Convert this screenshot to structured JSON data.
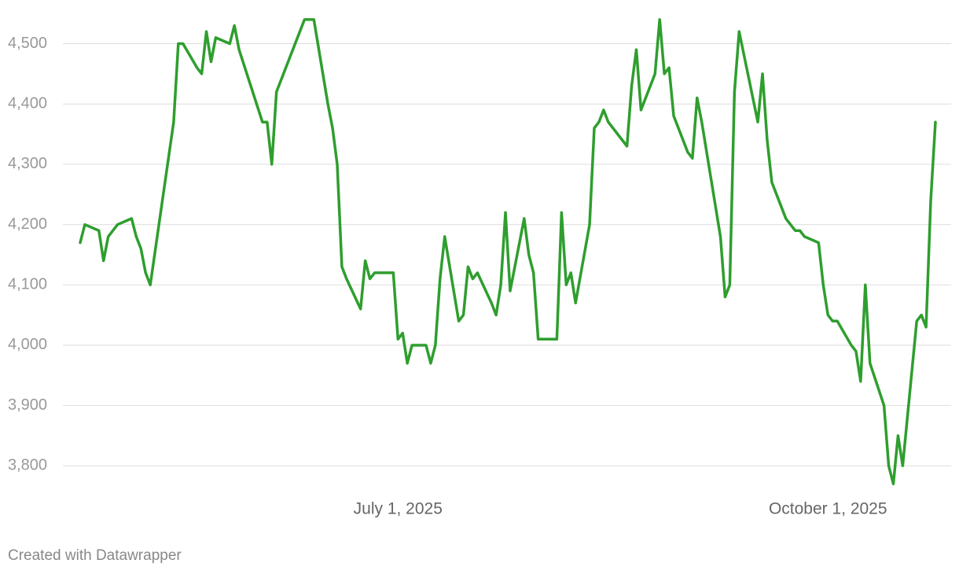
{
  "chart_data": {
    "type": "line",
    "footer": "Created with Datawrapper",
    "x": [
      "2025-04-24",
      "2025-04-25",
      "2025-04-28",
      "2025-04-29",
      "2025-04-30",
      "2025-05-02",
      "2025-05-05",
      "2025-05-06",
      "2025-05-07",
      "2025-05-08",
      "2025-05-09",
      "2025-05-14",
      "2025-05-15",
      "2025-05-16",
      "2025-05-19",
      "2025-05-20",
      "2025-05-21",
      "2025-05-22",
      "2025-05-23",
      "2025-05-26",
      "2025-05-27",
      "2025-05-28",
      "2025-06-02",
      "2025-06-03",
      "2025-06-04",
      "2025-06-05",
      "2025-06-11",
      "2025-06-13",
      "2025-06-16",
      "2025-06-17",
      "2025-06-18",
      "2025-06-19",
      "2025-06-20",
      "2025-06-23",
      "2025-06-24",
      "2025-06-25",
      "2025-06-26",
      "2025-06-30",
      "2025-07-01",
      "2025-07-02",
      "2025-07-03",
      "2025-07-04",
      "2025-07-07",
      "2025-07-08",
      "2025-07-09",
      "2025-07-10",
      "2025-07-11",
      "2025-07-14",
      "2025-07-15",
      "2025-07-16",
      "2025-07-17",
      "2025-07-18",
      "2025-07-21",
      "2025-07-22",
      "2025-07-23",
      "2025-07-24",
      "2025-07-25",
      "2025-07-28",
      "2025-07-29",
      "2025-07-30",
      "2025-07-31",
      "2025-08-04",
      "2025-08-05",
      "2025-08-06",
      "2025-08-07",
      "2025-08-08",
      "2025-08-11",
      "2025-08-12",
      "2025-08-13",
      "2025-08-14",
      "2025-08-15",
      "2025-08-19",
      "2025-08-20",
      "2025-08-21",
      "2025-08-22",
      "2025-08-25",
      "2025-08-26",
      "2025-08-27",
      "2025-08-28",
      "2025-08-29",
      "2025-09-01",
      "2025-09-02",
      "2025-09-03",
      "2025-09-04",
      "2025-09-08",
      "2025-09-09",
      "2025-09-10",
      "2025-09-11",
      "2025-09-12",
      "2025-09-16",
      "2025-09-17",
      "2025-09-18",
      "2025-09-19",
      "2025-09-22",
      "2025-09-24",
      "2025-09-25",
      "2025-09-26",
      "2025-09-29",
      "2025-09-30",
      "2025-10-01",
      "2025-10-02",
      "2025-10-03",
      "2025-10-06",
      "2025-10-07",
      "2025-10-08",
      "2025-10-09",
      "2025-10-10",
      "2025-10-13",
      "2025-10-14",
      "2025-10-15",
      "2025-10-16",
      "2025-10-17",
      "2025-10-20",
      "2025-10-21",
      "2025-10-22",
      "2025-10-23",
      "2025-10-24"
    ],
    "series": [
      {
        "color": "#2e9e2e",
        "values": [
          4170,
          4200,
          4190,
          4140,
          4180,
          4200,
          4210,
          4180,
          4160,
          4120,
          4100,
          4370,
          4500,
          4500,
          4460,
          4450,
          4520,
          4470,
          4510,
          4500,
          4530,
          4490,
          4370,
          4370,
          4300,
          4420,
          4540,
          4540,
          4400,
          4360,
          4300,
          4130,
          4110,
          4060,
          4140,
          4110,
          4120,
          4120,
          4010,
          4020,
          3970,
          4000,
          4000,
          3970,
          4000,
          4110,
          4180,
          4040,
          4050,
          4130,
          4110,
          4120,
          4070,
          4050,
          4100,
          4220,
          4090,
          4210,
          4150,
          4120,
          4010,
          4010,
          4220,
          4100,
          4120,
          4070,
          4200,
          4360,
          4370,
          4390,
          4370,
          4330,
          4430,
          4490,
          4390,
          4450,
          4540,
          4450,
          4460,
          4380,
          4320,
          4310,
          4410,
          4370,
          4180,
          4080,
          4100,
          4420,
          4520,
          4370,
          4450,
          4340,
          4270,
          4210,
          4190,
          4190,
          4180,
          4170,
          4100,
          4050,
          4040,
          4040,
          4000,
          3990,
          3940,
          4100,
          3970,
          3900,
          3800,
          3770,
          3850,
          3800,
          4040,
          4050,
          4030,
          4240,
          4370
        ]
      }
    ],
    "xlim": [
      "2025-04-24",
      "2025-10-24"
    ],
    "xticks": [
      {
        "value": "2025-07-01",
        "label": "July 1, 2025"
      },
      {
        "value": "2025-10-01",
        "label": "October 1, 2025"
      }
    ],
    "ylim": [
      3760,
      4545
    ],
    "yticks": [
      {
        "value": 3800,
        "label": "3,800"
      },
      {
        "value": 3900,
        "label": "3,900"
      },
      {
        "value": 4000,
        "label": "4,000"
      },
      {
        "value": 4100,
        "label": "4,100"
      },
      {
        "value": 4200,
        "label": "4,200"
      },
      {
        "value": 4300,
        "label": "4,300"
      },
      {
        "value": 4400,
        "label": "4,400"
      },
      {
        "value": 4500,
        "label": "4,500"
      }
    ],
    "grid": true
  }
}
